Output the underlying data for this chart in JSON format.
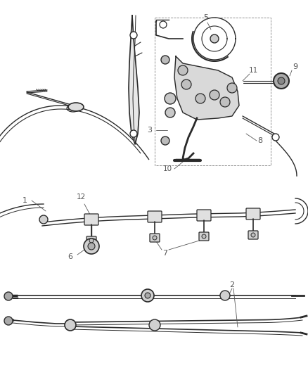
{
  "bg_color": "#ffffff",
  "line_color": "#2a2a2a",
  "label_color": "#555555",
  "fig_width": 4.38,
  "fig_height": 5.33,
  "dpi": 100
}
